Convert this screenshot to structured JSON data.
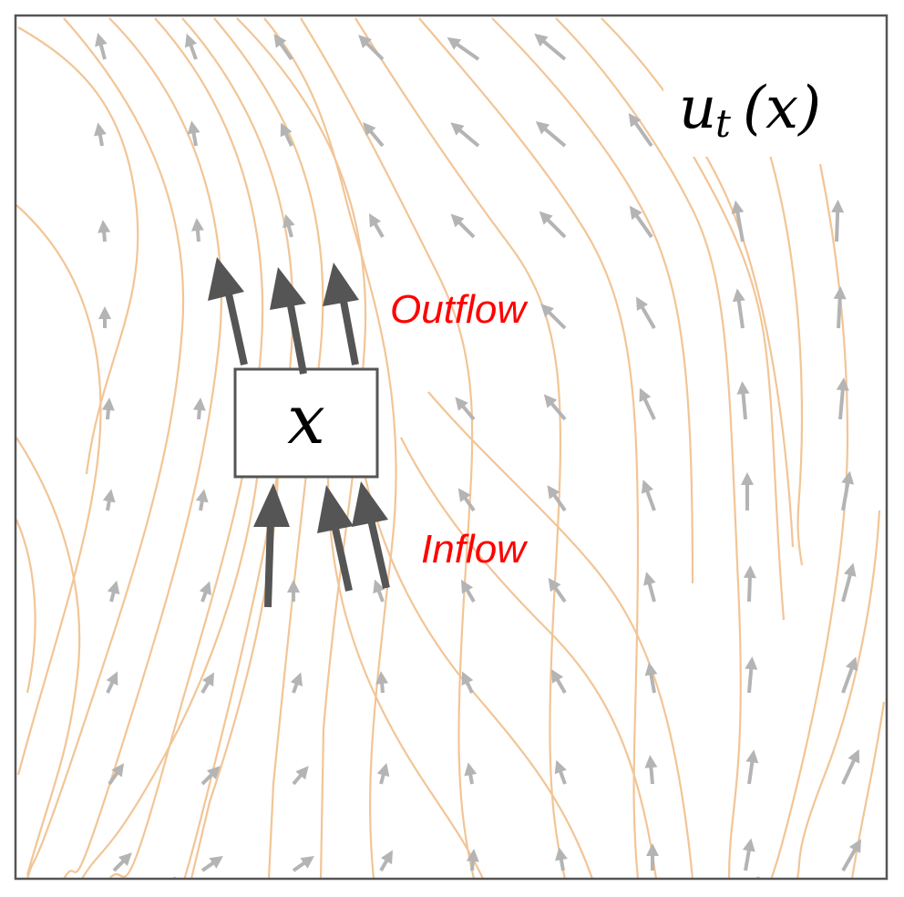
{
  "diagram": {
    "field_label": "u_t(x)",
    "field_label_base": "u",
    "field_label_sub": "t",
    "field_label_arg": "(x)",
    "box_label": "x",
    "outflow_label": "Outflow",
    "inflow_label": "Inflow",
    "colors": {
      "streamline": "#f2c596",
      "field_arrow": "#b4b4b4",
      "flux_arrow": "#555555",
      "annotation": "#ff0000",
      "frame": "#555555"
    }
  }
}
